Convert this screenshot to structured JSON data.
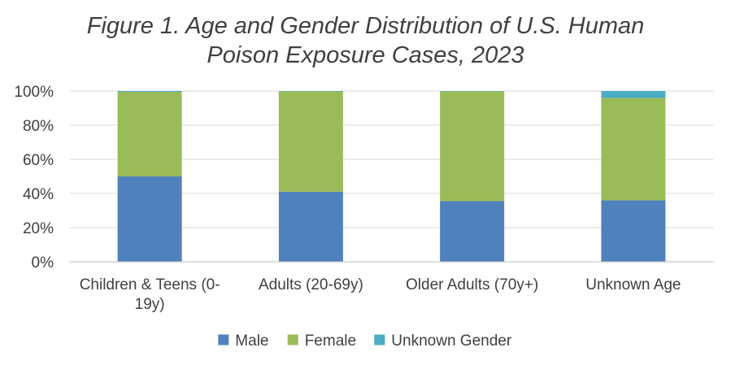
{
  "chart_data": {
    "type": "bar",
    "stacked": true,
    "title_lines": [
      "Figure 1.  Age and Gender Distribution of U.S. Human",
      "Poison Exposure Cases, 2023"
    ],
    "categories": [
      {
        "lines": [
          "Children & Teens (0-",
          "19y)"
        ]
      },
      {
        "lines": [
          "Adults (20-69y)"
        ]
      },
      {
        "lines": [
          "Older Adults (70y+)"
        ]
      },
      {
        "lines": [
          "Unknown Age"
        ]
      }
    ],
    "series": [
      {
        "name": "Male",
        "color": "#4f81bd",
        "values": [
          50,
          41,
          35.5,
          36
        ]
      },
      {
        "name": "Female",
        "color": "#9bbb59",
        "values": [
          49.5,
          58.8,
          64.3,
          60
        ]
      },
      {
        "name": "Unknown Gender",
        "color": "#4bacc6",
        "values": [
          0.5,
          0.2,
          0.2,
          4
        ]
      }
    ],
    "y_ticks": [
      "0%",
      "20%",
      "40%",
      "60%",
      "80%",
      "100%"
    ],
    "ylim": [
      0,
      100
    ],
    "grid": true,
    "legend_position": "bottom"
  }
}
